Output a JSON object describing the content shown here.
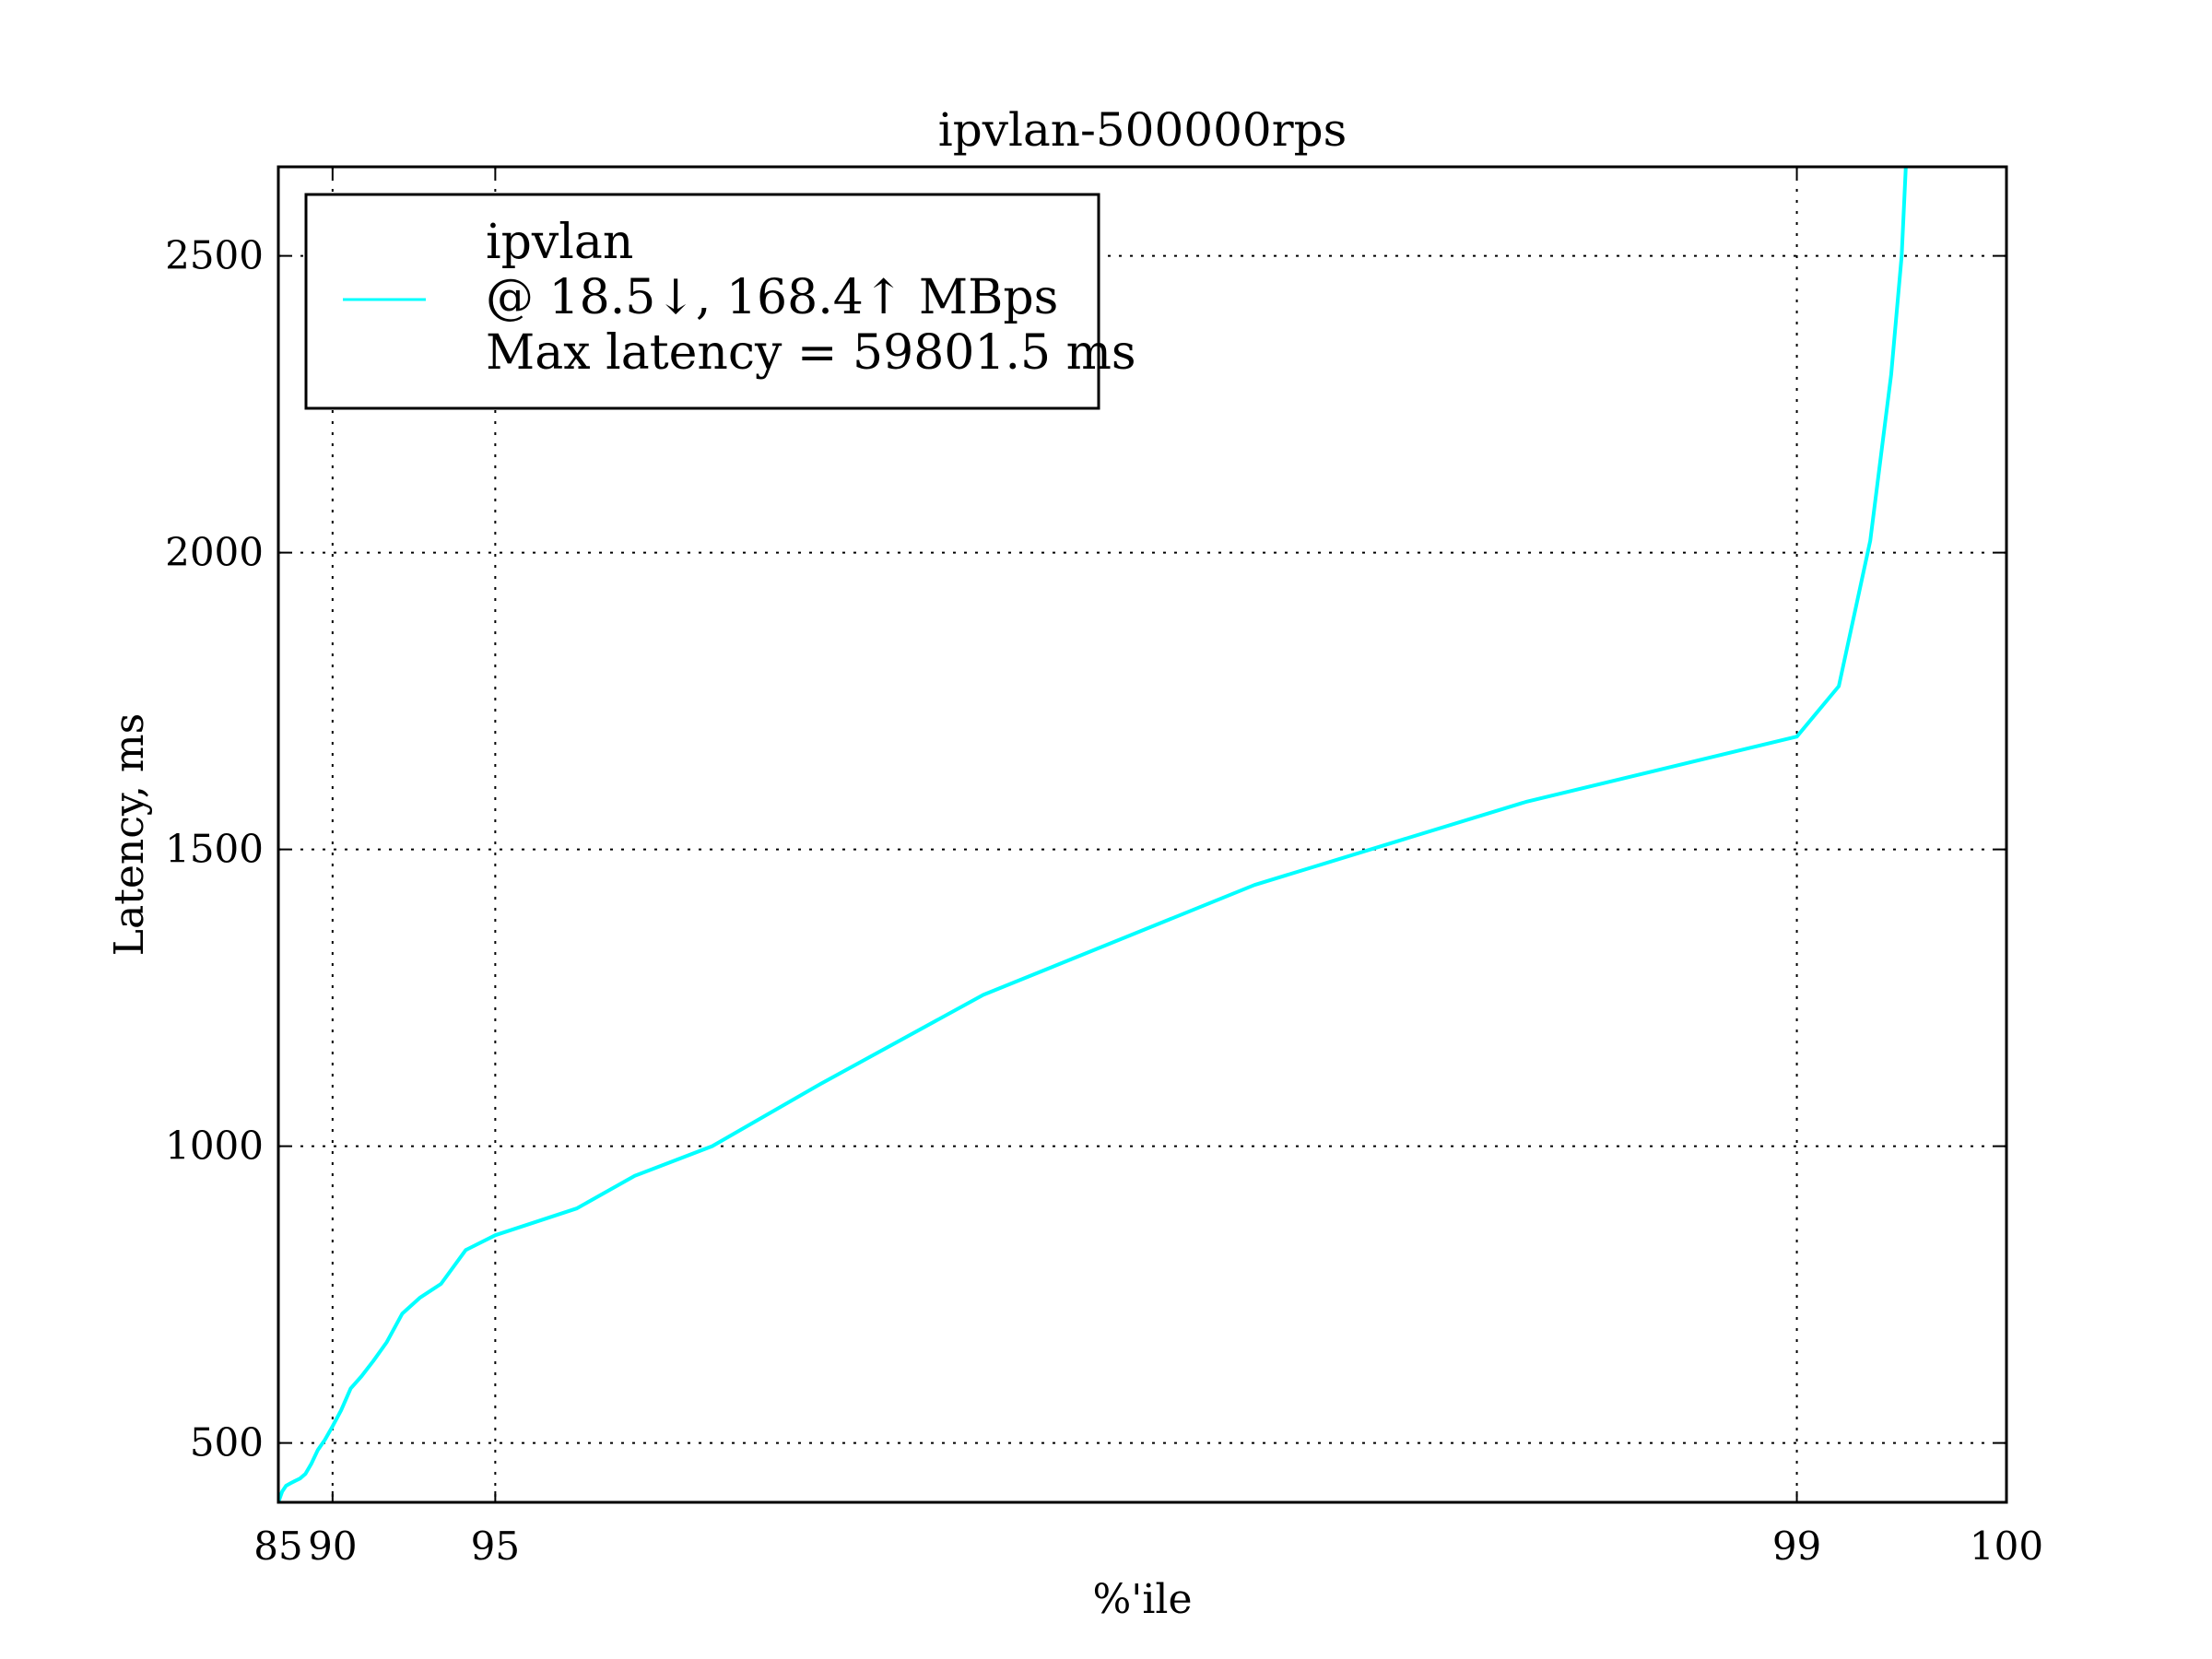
{
  "chart_data": {
    "type": "line",
    "title": "ipvlan-500000rps",
    "xlabel": "%'ile",
    "ylabel": "Latency, ms",
    "x_scale": "reciprocal-tail",
    "x_ticks": [
      85,
      90,
      95,
      99,
      100
    ],
    "y_ticks": [
      500,
      1000,
      1500,
      2000,
      2500
    ],
    "ylim": [
      400,
      2650
    ],
    "grid": true,
    "legend_position": "top-left",
    "series": [
      {
        "name": "ipvlan",
        "legend_lines": [
          "ipvlan",
          "@ 18.5↓, 168.4↑ MBps",
          "Max latency = 59801.5 ms"
        ],
        "color": "#00ffff",
        "x": [
          85.0,
          85.5,
          86.0,
          86.5,
          87.0,
          87.5,
          88.0,
          88.5,
          89.0,
          89.5,
          90.0,
          90.5,
          91.0,
          91.5,
          92.0,
          92.5,
          93.0,
          93.5,
          94.0,
          94.5,
          95.0,
          95.5,
          96.0,
          96.5,
          97.0,
          97.5,
          98.0,
          98.5,
          98.8,
          99.0,
          99.2,
          99.35,
          99.45,
          99.5,
          99.52
        ],
        "y": [
          400,
          418,
          428,
          432,
          436,
          440,
          448,
          465,
          488,
          505,
          528,
          555,
          592,
          612,
          638,
          670,
          718,
          745,
          768,
          825,
          850,
          870,
          895,
          950,
          1000,
          1105,
          1255,
          1440,
          1580,
          1690,
          1775,
          2020,
          2300,
          2500,
          2650
        ]
      }
    ]
  }
}
